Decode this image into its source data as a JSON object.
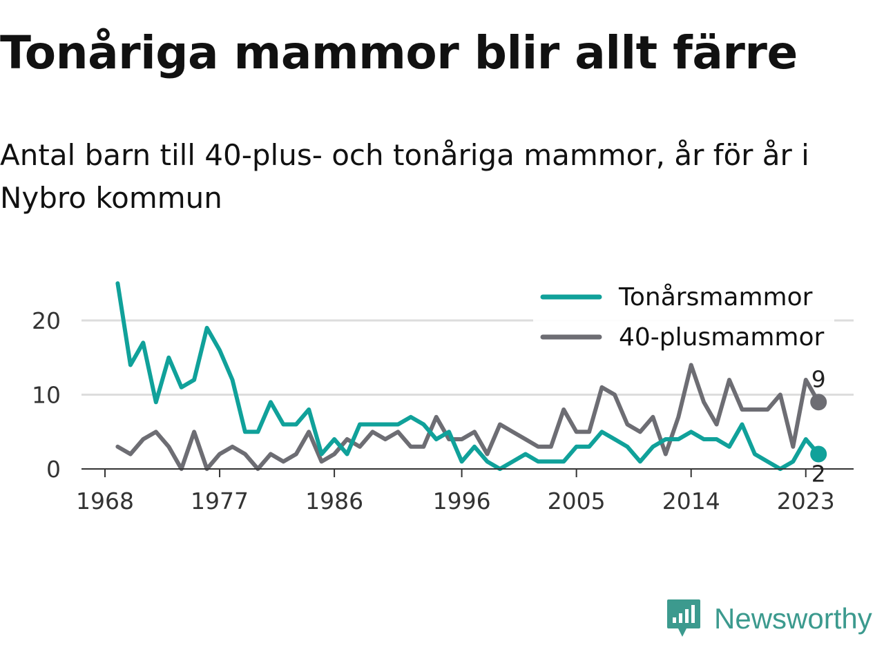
{
  "title": "Tonåriga mammor blir allt färre",
  "subtitle": "Antal barn till 40-plus- och tonåriga mammor, år för år i Nybro kommun",
  "brand": {
    "name": "Newsworthy",
    "icon": "newsworthy-logo-icon",
    "color": "#3c9a8e"
  },
  "chart_data": {
    "type": "line",
    "title": "Tonåriga mammor blir allt färre",
    "subtitle": "Antal barn till 40-plus- och tonåriga mammor, år för år i Nybro kommun",
    "xlabel": "",
    "ylabel": "",
    "x_ticks": [
      1968,
      1977,
      1986,
      1996,
      2005,
      2014,
      2023
    ],
    "y_ticks": [
      0,
      10,
      20
    ],
    "xlim": [
      1967,
      2025
    ],
    "ylim": [
      0,
      25
    ],
    "grid": "horizontal",
    "legend_position": "top-right",
    "x": [
      1969,
      1970,
      1971,
      1972,
      1973,
      1974,
      1975,
      1976,
      1977,
      1978,
      1979,
      1980,
      1981,
      1982,
      1983,
      1984,
      1985,
      1986,
      1987,
      1988,
      1989,
      1990,
      1991,
      1992,
      1993,
      1994,
      1995,
      1996,
      1997,
      1998,
      1999,
      2000,
      2001,
      2002,
      2003,
      2004,
      2005,
      2006,
      2007,
      2008,
      2009,
      2010,
      2011,
      2012,
      2013,
      2014,
      2015,
      2016,
      2017,
      2018,
      2019,
      2020,
      2021,
      2022,
      2023,
      2024
    ],
    "series": [
      {
        "name": "Tonårsmammor",
        "color": "#10a19a",
        "values": [
          25,
          14,
          17,
          9,
          15,
          11,
          12,
          19,
          16,
          12,
          5,
          5,
          9,
          6,
          6,
          8,
          2,
          4,
          2,
          6,
          6,
          6,
          6,
          7,
          6,
          4,
          5,
          1,
          3,
          1,
          0,
          1,
          2,
          1,
          1,
          1,
          3,
          3,
          5,
          4,
          3,
          1,
          3,
          4,
          4,
          5,
          4,
          4,
          3,
          6,
          2,
          1,
          0,
          1,
          4,
          2
        ],
        "end_label": "2"
      },
      {
        "name": "40-plusmammor",
        "color": "#6d6d73",
        "values": [
          3,
          2,
          4,
          5,
          3,
          0,
          5,
          0,
          2,
          3,
          2,
          0,
          2,
          1,
          2,
          5,
          1,
          2,
          4,
          3,
          5,
          4,
          5,
          3,
          3,
          7,
          4,
          4,
          5,
          2,
          6,
          5,
          4,
          3,
          3,
          8,
          5,
          5,
          11,
          10,
          6,
          5,
          7,
          2,
          7,
          14,
          9,
          6,
          12,
          8,
          8,
          8,
          10,
          3,
          12,
          9
        ],
        "end_label": "9"
      }
    ]
  }
}
